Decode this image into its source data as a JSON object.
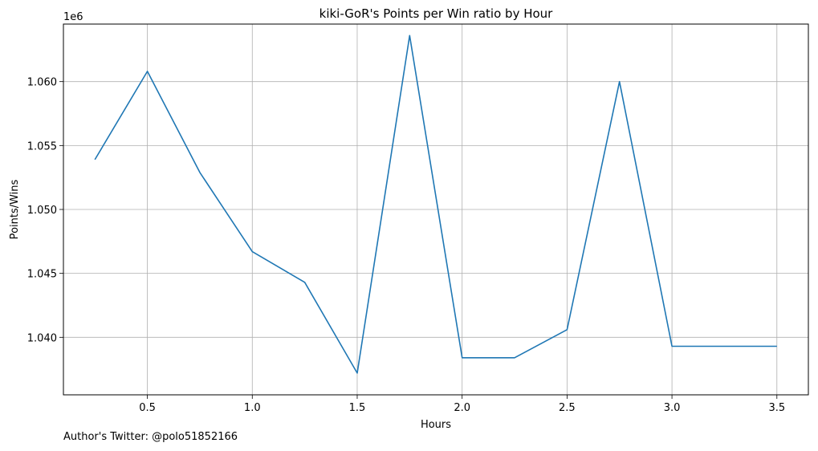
{
  "chart_data": {
    "type": "line",
    "title": "kiki-GoR's Points per Win ratio by Hour",
    "xlabel": "Hours",
    "ylabel": "Points/Wins",
    "y_offset_label": "1e6",
    "xlim": [
      0.1,
      3.65
    ],
    "ylim": [
      1.0355,
      1.0645
    ],
    "x_ticks": [
      0.5,
      1.0,
      1.5,
      2.0,
      2.5,
      3.0,
      3.5
    ],
    "x_tick_labels": [
      "0.5",
      "1.0",
      "1.5",
      "2.0",
      "2.5",
      "3.0",
      "3.5"
    ],
    "y_ticks": [
      1.04,
      1.045,
      1.05,
      1.055,
      1.06
    ],
    "y_tick_labels": [
      "1.040",
      "1.045",
      "1.050",
      "1.055",
      "1.060"
    ],
    "grid": true,
    "series": [
      {
        "color": "#1f77b4",
        "x": [
          0.25,
          0.5,
          0.75,
          1.0,
          1.25,
          1.5,
          1.75,
          2.0,
          2.25,
          2.5,
          2.75,
          3.0,
          3.25,
          3.5
        ],
        "y": [
          1.0539,
          1.0608,
          1.0529,
          1.0467,
          1.0443,
          1.0372,
          1.0636,
          1.0384,
          1.0384,
          1.0406,
          1.06,
          1.0393,
          1.0393,
          1.0393
        ]
      }
    ]
  },
  "footer": {
    "author": "Author's Twitter: @polo51852166"
  }
}
